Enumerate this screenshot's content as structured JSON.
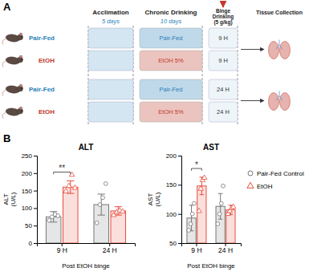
{
  "chart_data": [
    {
      "type": "diagram",
      "annotations": [
        "A",
        "Acclimation",
        "Chronic Drinking",
        "Binge\nDrinking\n(5 g/kg)",
        "Tissue Collection",
        "5 days",
        "10 days",
        "Pair-Fed",
        "EtOH",
        "Pair-Fed",
        "EtOH",
        "Pair-Fed",
        "EtOH 5%",
        "Pair-Fed",
        "EtOH 5%",
        "9 H",
        "9 H",
        "24 H",
        "24 H",
        "B"
      ],
      "colors": [
        "#2980B9",
        "#C0392B",
        "#2980B9",
        "#C0392B"
      ]
    },
    {
      "type": "bar",
      "title": "ALT",
      "ylabel": "ALT\n(U/L)",
      "xlabel": "Post EtOH binge",
      "categories": [
        "9 H",
        "24 H"
      ],
      "ylim": [
        0,
        250
      ],
      "yticks": [
        0,
        50,
        100,
        150,
        200,
        250
      ],
      "series": [
        {
          "color": "#777777",
          "marker": "circle",
          "values": [
            75,
            110
          ],
          "errors": [
            15,
            30
          ],
          "points": [
            [
              65,
              75,
              82,
              78
            ],
            [
              58,
              110,
              130,
              170
            ]
          ]
        },
        {
          "color": "#E74C3C",
          "marker": "triangle",
          "values": [
            160,
            92
          ],
          "errors": [
            18,
            12
          ],
          "points": [
            [
              148,
              163,
              195,
              158
            ],
            [
              80,
              88,
              93,
              90
            ]
          ]
        }
      ],
      "annotations": [
        "**"
      ]
    },
    {
      "type": "bar",
      "title": "AST",
      "ylabel": "AST\n(U/L)",
      "xlabel": "Post EtOH binge",
      "categories": [
        "9 H",
        "24 H"
      ],
      "ylim": [
        50,
        200
      ],
      "yticks": [
        50,
        100,
        150,
        200
      ],
      "series": [
        {
          "name": "Pair-Fed Control",
          "color": "#777777",
          "marker": "circle",
          "values": [
            93,
            113
          ],
          "errors": [
            22,
            22
          ],
          "points": [
            [
              72,
              83,
              100,
              118
            ],
            [
              83,
              100,
              118,
              148
            ]
          ]
        },
        {
          "name": "EtOH",
          "color": "#E74C3C",
          "marker": "triangle",
          "values": [
            148,
            107
          ],
          "errors": [
            15,
            8
          ],
          "points": [
            [
              105,
              143,
              158,
              162
            ],
            [
              100,
              105,
              110,
              112
            ]
          ]
        }
      ],
      "annotations": [
        "*"
      ],
      "legend": "right"
    }
  ]
}
